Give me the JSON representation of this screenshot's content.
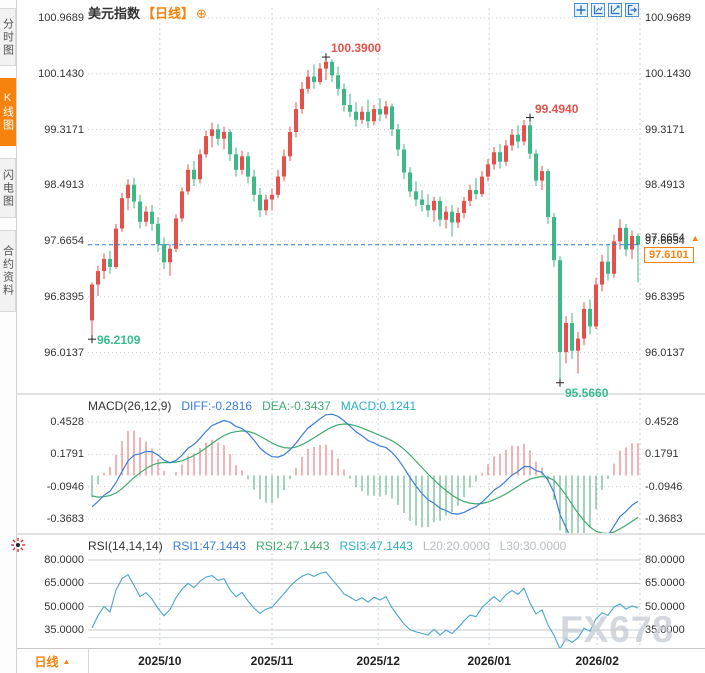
{
  "header": {
    "instrument": "美元指数",
    "period": "【日线】",
    "plus_icon": "⊕"
  },
  "icons": {
    "up_triangle": "▲"
  },
  "sidebar": {
    "tabs": [
      {
        "label": "分时图",
        "active": false
      },
      {
        "label": "K线图",
        "active": true
      },
      {
        "label": "闪电图",
        "active": false
      },
      {
        "label": "合约资料",
        "active": false
      }
    ]
  },
  "toolbar": {
    "buttons": [
      "crosshair",
      "scale-axes",
      "scale-trend",
      "exit-fullscreen"
    ]
  },
  "bottom_bar": {
    "period_label": "日线"
  },
  "watermark": {
    "text": "FX678"
  },
  "colors": {
    "up": "#e6504a",
    "down": "#3eb886",
    "label_red": "#e6504a",
    "label_green": "#35bd8f",
    "accent_orange": "#f7820e",
    "dashed_blue": "#2e7bd6",
    "diff_blue": "#3b7dd8",
    "dea_green": "#3faa6e",
    "macd_cyan": "#2ab0c5",
    "rsi_line": "#49a5cf",
    "grid": "#ccd1d8",
    "level_line": "#c4c8cc"
  },
  "chart_data": {
    "type": "candlestick",
    "title": "美元指数 日线",
    "x_axis": {
      "labels": [
        "2025/10",
        "2025/11",
        "2025/12",
        "2026/01",
        "2026/02"
      ],
      "tick_indices": [
        11.3,
        30,
        47.7,
        66.2,
        84.2
      ]
    },
    "y_axis_main": {
      "ticks": [
        100.9689,
        100.143,
        99.3171,
        98.4913,
        97.6654,
        96.8395,
        96.0137
      ]
    },
    "last_price": "97.6101",
    "axis_marker": "97.6654",
    "annotations": {
      "high1": {
        "value": "100.3900",
        "index": 39,
        "kind": "high"
      },
      "high2": {
        "value": "99.4940",
        "index": 73,
        "kind": "high"
      },
      "low1": {
        "value": "96.2109",
        "index": 0,
        "kind": "low"
      },
      "low2": {
        "value": "95.5660",
        "index": 78,
        "kind": "low"
      }
    },
    "candles": [
      [
        96.49,
        97.05,
        96.2109,
        97.02
      ],
      [
        97.02,
        97.3,
        96.85,
        97.22
      ],
      [
        97.22,
        97.48,
        97.1,
        97.4
      ],
      [
        97.4,
        97.52,
        97.18,
        97.28
      ],
      [
        97.28,
        97.92,
        97.25,
        97.85
      ],
      [
        97.85,
        98.38,
        97.8,
        98.3
      ],
      [
        98.3,
        98.58,
        98.12,
        98.5
      ],
      [
        98.5,
        98.6,
        98.15,
        98.25
      ],
      [
        98.25,
        98.35,
        97.85,
        97.95
      ],
      [
        97.95,
        98.18,
        97.88,
        98.1
      ],
      [
        98.1,
        98.2,
        97.82,
        97.92
      ],
      [
        97.92,
        98.02,
        97.5,
        97.62
      ],
      [
        97.62,
        97.72,
        97.25,
        97.35
      ],
      [
        97.35,
        97.62,
        97.15,
        97.55
      ],
      [
        97.55,
        98.06,
        97.5,
        98.0
      ],
      [
        98.0,
        98.46,
        97.95,
        98.4
      ],
      [
        98.4,
        98.8,
        98.35,
        98.72
      ],
      [
        98.72,
        98.85,
        98.48,
        98.58
      ],
      [
        98.58,
        99.02,
        98.52,
        98.95
      ],
      [
        98.95,
        99.3,
        98.9,
        99.22
      ],
      [
        99.22,
        99.42,
        99.05,
        99.32
      ],
      [
        99.32,
        99.4,
        99.08,
        99.18
      ],
      [
        99.18,
        99.36,
        99.02,
        99.28
      ],
      [
        99.28,
        99.32,
        98.85,
        98.95
      ],
      [
        98.95,
        99.05,
        98.62,
        98.72
      ],
      [
        98.72,
        99.0,
        98.65,
        98.92
      ],
      [
        98.92,
        98.98,
        98.52,
        98.62
      ],
      [
        98.62,
        98.72,
        98.25,
        98.35
      ],
      [
        98.35,
        98.45,
        98.02,
        98.12
      ],
      [
        98.12,
        98.35,
        98.05,
        98.28
      ],
      [
        98.28,
        98.44,
        98.12,
        98.35
      ],
      [
        98.35,
        98.72,
        98.3,
        98.62
      ],
      [
        98.62,
        99.02,
        98.55,
        98.92
      ],
      [
        98.92,
        99.36,
        98.85,
        99.28
      ],
      [
        99.28,
        99.72,
        99.2,
        99.62
      ],
      [
        99.62,
        100.02,
        99.55,
        99.92
      ],
      [
        99.92,
        100.2,
        99.85,
        100.1
      ],
      [
        100.1,
        100.28,
        99.92,
        100.02
      ],
      [
        100.02,
        100.3,
        99.98,
        100.22
      ],
      [
        100.22,
        100.39,
        100.05,
        100.32
      ],
      [
        100.32,
        100.36,
        100.02,
        100.12
      ],
      [
        100.12,
        100.25,
        99.82,
        99.92
      ],
      [
        99.92,
        100.0,
        99.58,
        99.68
      ],
      [
        99.68,
        99.85,
        99.5,
        99.58
      ],
      [
        99.58,
        99.72,
        99.36,
        99.46
      ],
      [
        99.46,
        99.66,
        99.4,
        99.58
      ],
      [
        99.58,
        99.76,
        99.34,
        99.44
      ],
      [
        99.44,
        99.68,
        99.38,
        99.62
      ],
      [
        99.62,
        99.78,
        99.44,
        99.54
      ],
      [
        99.54,
        99.74,
        99.48,
        99.66
      ],
      [
        99.66,
        99.7,
        99.22,
        99.32
      ],
      [
        99.32,
        99.4,
        98.92,
        99.02
      ],
      [
        99.02,
        99.1,
        98.58,
        98.68
      ],
      [
        98.68,
        98.76,
        98.32,
        98.4
      ],
      [
        98.4,
        98.55,
        98.18,
        98.28
      ],
      [
        98.28,
        98.42,
        98.1,
        98.2
      ],
      [
        98.2,
        98.36,
        98.02,
        98.12
      ],
      [
        98.12,
        98.32,
        97.95,
        98.26
      ],
      [
        98.26,
        98.32,
        97.88,
        97.98
      ],
      [
        97.98,
        98.18,
        97.85,
        98.1
      ],
      [
        98.1,
        98.2,
        97.73,
        97.94
      ],
      [
        97.94,
        98.16,
        97.86,
        98.08
      ],
      [
        98.08,
        98.32,
        98.0,
        98.26
      ],
      [
        98.26,
        98.5,
        98.18,
        98.42
      ],
      [
        98.42,
        98.6,
        98.28,
        98.36
      ],
      [
        98.36,
        98.7,
        98.32,
        98.62
      ],
      [
        98.62,
        98.88,
        98.55,
        98.8
      ],
      [
        98.8,
        99.06,
        98.72,
        98.98
      ],
      [
        98.98,
        99.1,
        98.74,
        98.84
      ],
      [
        98.84,
        99.16,
        98.78,
        99.08
      ],
      [
        99.08,
        99.32,
        99.0,
        99.24
      ],
      [
        99.24,
        99.38,
        99.04,
        99.14
      ],
      [
        99.14,
        99.46,
        99.08,
        99.38
      ],
      [
        99.38,
        99.494,
        98.88,
        98.96
      ],
      [
        98.96,
        99.02,
        98.48,
        98.56
      ],
      [
        98.56,
        98.78,
        98.42,
        98.7
      ],
      [
        98.7,
        98.74,
        97.92,
        98.02
      ],
      [
        98.02,
        98.08,
        97.28,
        97.38
      ],
      [
        97.38,
        97.44,
        95.566,
        96.02
      ],
      [
        96.02,
        96.55,
        95.85,
        96.45
      ],
      [
        96.45,
        96.6,
        95.92,
        96.04
      ],
      [
        96.04,
        96.32,
        95.7,
        96.22
      ],
      [
        96.22,
        96.76,
        96.12,
        96.66
      ],
      [
        96.66,
        96.8,
        96.28,
        96.4
      ],
      [
        96.4,
        97.12,
        96.36,
        97.02
      ],
      [
        97.02,
        97.46,
        96.92,
        97.36
      ],
      [
        97.36,
        97.6,
        97.08,
        97.18
      ],
      [
        97.18,
        97.76,
        97.12,
        97.66
      ],
      [
        97.66,
        97.99,
        97.54,
        97.86
      ],
      [
        97.86,
        97.92,
        97.44,
        97.54
      ],
      [
        97.54,
        97.82,
        97.4,
        97.74
      ],
      [
        97.74,
        97.78,
        97.05,
        97.6101
      ]
    ],
    "macd": {
      "title": "MACD(26,12,9)",
      "diff_label": "DIFF:-0.2816",
      "dea_label": "DEA:-0.3437",
      "macd_label": "MACD:0.1241",
      "ticks": [
        0.4528,
        0.1791,
        -0.0946,
        -0.3683
      ],
      "params": [
        26,
        12,
        9
      ]
    },
    "rsi": {
      "title": "RSI(14,14,14)",
      "rsi1_label": "RSI1:47.1443",
      "rsi2_label": "RSI2:47.1443",
      "rsi3_label": "RSI3:47.1443",
      "l20_label": "L20:20.0000",
      "l30_label": "L30:30.0000",
      "ticks": [
        80,
        65,
        50,
        35
      ],
      "levels": {
        "L20": 20,
        "L30": 30
      }
    }
  }
}
